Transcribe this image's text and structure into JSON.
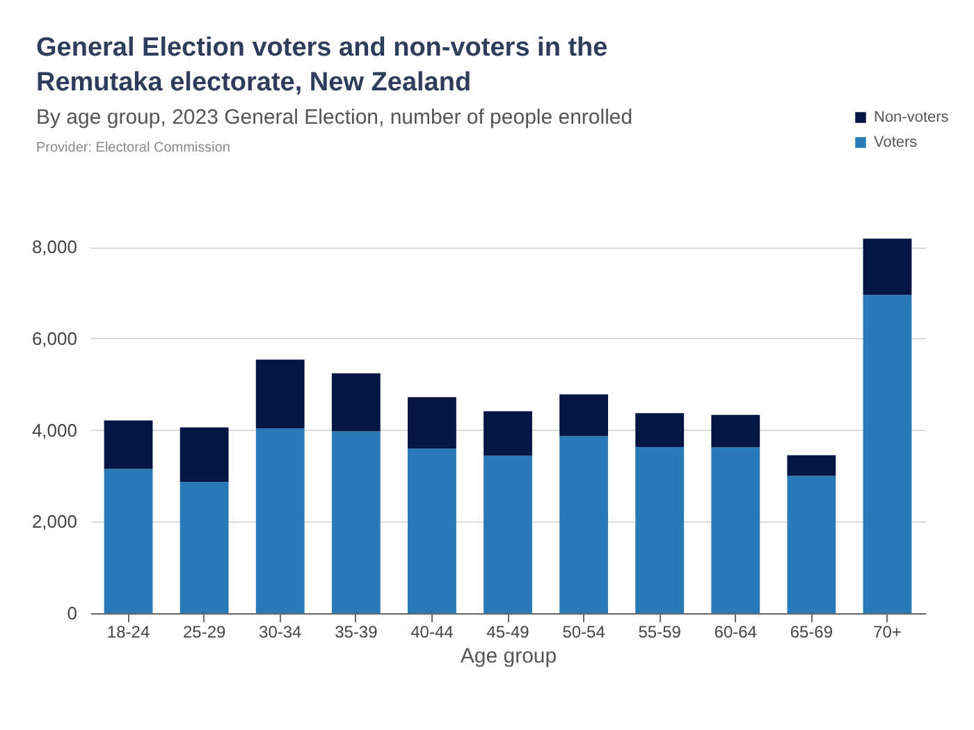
{
  "chart_data": {
    "type": "bar",
    "title": "General Election voters and non-voters in the Remutaka electorate, New Zealand",
    "subtitle": "By age group, 2023 General Election, number of people enrolled",
    "annotations": [
      "Provider: Electoral Commission"
    ],
    "xlabel": "Age group",
    "categories": [
      "18-24",
      "25-29",
      "30-34",
      "35-39",
      "40-44",
      "45-49",
      "50-54",
      "55-59",
      "60-64",
      "65-69",
      "70+"
    ],
    "stacked": true,
    "series": [
      {
        "name": "Voters",
        "color": "#2a7ab8",
        "values": [
          3150,
          2870,
          4040,
          3970,
          3600,
          3440,
          3870,
          3630,
          3620,
          3000,
          6950
        ]
      },
      {
        "name": "Non-voters",
        "color": "#051544",
        "values": [
          1060,
          1190,
          1500,
          1270,
          1120,
          970,
          910,
          740,
          710,
          450,
          1230
        ]
      }
    ],
    "ylim": [
      0,
      8200
    ],
    "yticks": [
      {
        "value": 0,
        "label": "0"
      },
      {
        "value": 2000,
        "label": "2,000"
      },
      {
        "value": 4000,
        "label": "4,000"
      },
      {
        "value": 6000,
        "label": "6,000"
      },
      {
        "value": 8000,
        "label": "8,000"
      }
    ],
    "grid": "y",
    "legend": "top right"
  }
}
